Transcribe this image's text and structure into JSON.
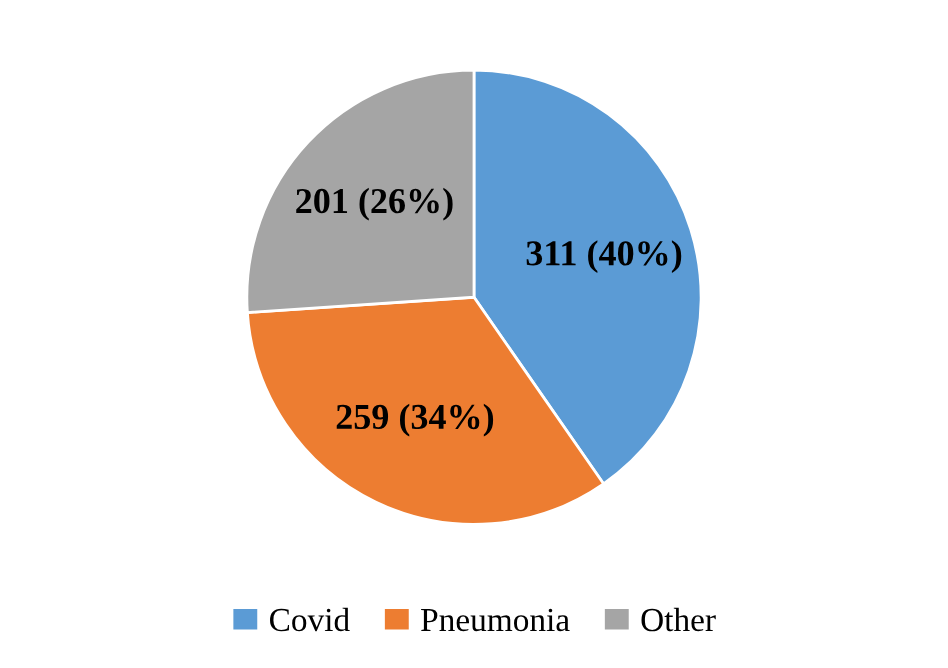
{
  "chart_data": {
    "type": "pie",
    "categories": [
      "Covid",
      "Pneumonia",
      "Other"
    ],
    "values": [
      311,
      259,
      201
    ],
    "value_labels": [
      "311 (40%)",
      "259 (34%)",
      "201 (26%)"
    ],
    "colors": [
      "#5b9bd5",
      "#ed7d31",
      "#a5a5a5"
    ],
    "legend": "bottom"
  }
}
